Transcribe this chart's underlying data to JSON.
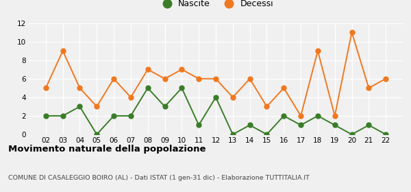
{
  "years": [
    "02",
    "03",
    "04",
    "05",
    "06",
    "07",
    "08",
    "09",
    "10",
    "11",
    "12",
    "13",
    "14",
    "15",
    "16",
    "17",
    "18",
    "19",
    "20",
    "21",
    "22"
  ],
  "nascite": [
    2,
    2,
    3,
    0,
    2,
    2,
    5,
    3,
    5,
    1,
    4,
    0,
    1,
    0,
    2,
    1,
    2,
    1,
    0,
    1,
    0
  ],
  "decessi": [
    5,
    9,
    5,
    3,
    6,
    4,
    7,
    6,
    7,
    6,
    6,
    4,
    6,
    3,
    5,
    2,
    9,
    2,
    11,
    5,
    6
  ],
  "nascite_color": "#3a7d27",
  "decessi_color": "#f07820",
  "ylim": [
    0,
    12
  ],
  "yticks": [
    0,
    2,
    4,
    6,
    8,
    10,
    12
  ],
  "title": "Movimento naturale della popolazione",
  "subtitle": "COMUNE DI CASALEGGIO BOIRO (AL) - Dati ISTAT (1 gen-31 dic) - Elaborazione TUTTITALIA.IT",
  "legend_nascite": "Nascite",
  "legend_decessi": "Decessi",
  "background_color": "#f0f0f0",
  "grid_color": "#ffffff",
  "marker_size": 5,
  "linewidth": 1.4
}
